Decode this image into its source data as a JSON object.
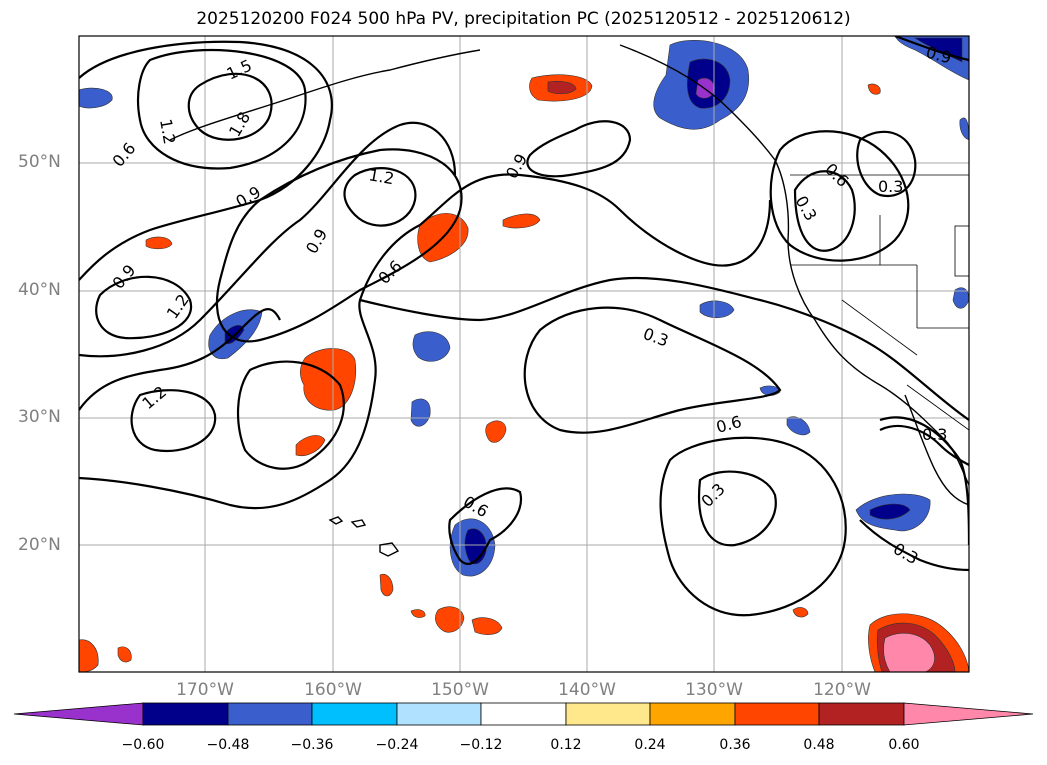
{
  "title": "2025120200 F024 500 hPa PV, precipitation PC (2025120512 - 2025120612)",
  "latitude_labels": [
    "50°N",
    "40°N",
    "30°N",
    "20°N"
  ],
  "longitude_labels": [
    "170°W",
    "160°W",
    "150°W",
    "140°W",
    "130°W",
    "120°W"
  ],
  "contour_labels": [
    "1.5",
    "1.8",
    "1.2",
    "0.6",
    "0.9",
    "1.2",
    "0.9",
    "0.6",
    "1.2",
    "0.9",
    "1.2",
    "0.9",
    "0.6",
    "0.3",
    "0.3",
    "0.6",
    "0.3",
    "0.6",
    "0.3",
    "0.3",
    "0.3",
    "0.9"
  ],
  "colorbar": {
    "ticks": [
      "−0.60",
      "−0.48",
      "−0.36",
      "−0.24",
      "−0.12",
      "0.12",
      "0.24",
      "0.36",
      "0.48",
      "0.60"
    ],
    "colors": [
      "#9932cc",
      "#00008b",
      "#3a5fcd",
      "#00bfff",
      "#b0e2ff",
      "#ffffff",
      "#ffe88c",
      "#ffa500",
      "#ff4500",
      "#b22222",
      "#ff88aa"
    ]
  }
}
